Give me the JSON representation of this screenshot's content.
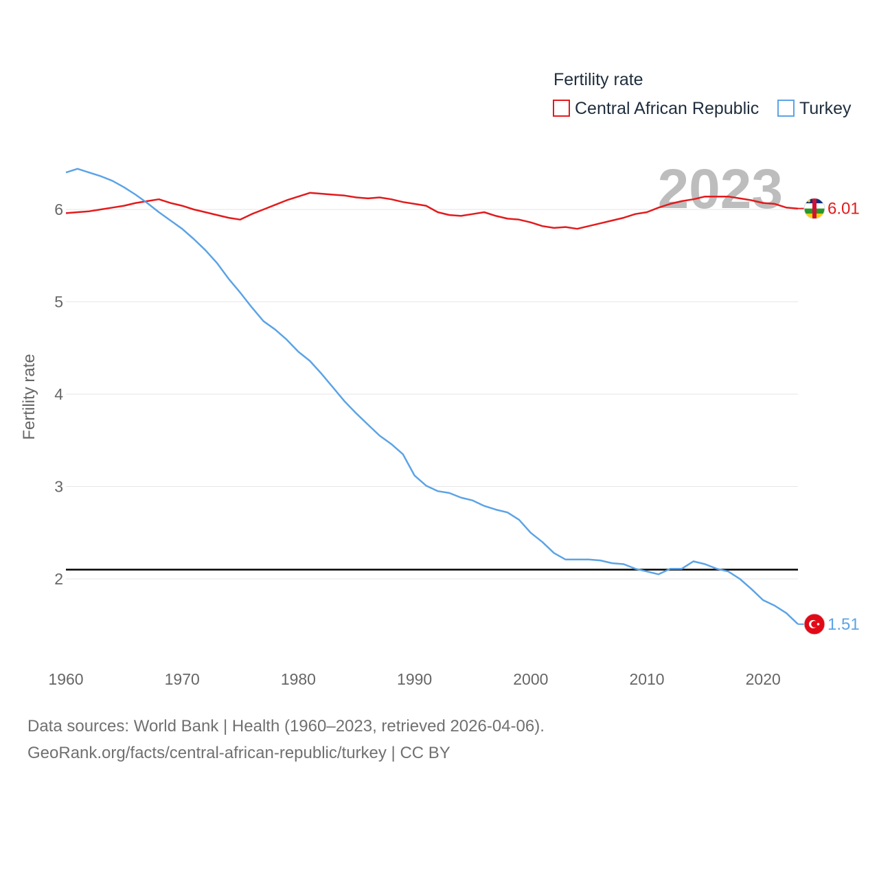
{
  "chart_data": {
    "type": "line",
    "title": "Fertility rate",
    "ylabel": "Fertility rate",
    "xlabel": "",
    "xlim": [
      1960,
      2023
    ],
    "ylim": [
      1.3,
      6.6
    ],
    "x_ticks": [
      1960,
      1970,
      1980,
      1990,
      2000,
      2010,
      2020
    ],
    "y_ticks": [
      2,
      3,
      4,
      5,
      6
    ],
    "year_label": "2023",
    "reference_line": {
      "value": 2.1,
      "color": "#000000"
    },
    "x": [
      1960,
      1961,
      1962,
      1963,
      1964,
      1965,
      1966,
      1967,
      1968,
      1969,
      1970,
      1971,
      1972,
      1973,
      1974,
      1975,
      1976,
      1977,
      1978,
      1979,
      1980,
      1981,
      1982,
      1983,
      1984,
      1985,
      1986,
      1987,
      1988,
      1989,
      1990,
      1991,
      1992,
      1993,
      1994,
      1995,
      1996,
      1997,
      1998,
      1999,
      2000,
      2001,
      2002,
      2003,
      2004,
      2005,
      2006,
      2007,
      2008,
      2009,
      2010,
      2011,
      2012,
      2013,
      2014,
      2015,
      2016,
      2017,
      2018,
      2019,
      2020,
      2021,
      2022,
      2023
    ],
    "series": [
      {
        "name": "Central African Republic",
        "color": "#e31a1c",
        "end_label": "6.01",
        "flag": "central-african-republic-flag-icon",
        "values": [
          5.96,
          5.97,
          5.98,
          6.0,
          6.02,
          6.04,
          6.07,
          6.09,
          6.11,
          6.07,
          6.04,
          6.0,
          5.97,
          5.94,
          5.91,
          5.89,
          5.95,
          6.0,
          6.05,
          6.1,
          6.14,
          6.18,
          6.17,
          6.16,
          6.15,
          6.13,
          6.12,
          6.13,
          6.11,
          6.08,
          6.06,
          6.04,
          5.97,
          5.94,
          5.93,
          5.95,
          5.97,
          5.93,
          5.9,
          5.89,
          5.86,
          5.82,
          5.8,
          5.81,
          5.79,
          5.82,
          5.85,
          5.88,
          5.91,
          5.95,
          5.97,
          6.02,
          6.06,
          6.09,
          6.11,
          6.14,
          6.14,
          6.14,
          6.12,
          6.1,
          6.07,
          6.06,
          6.02,
          6.01
        ]
      },
      {
        "name": "Turkey",
        "color": "#5ba3e6",
        "end_label": "1.51",
        "flag": "turkey-flag-icon",
        "values": [
          6.4,
          6.44,
          6.4,
          6.36,
          6.31,
          6.24,
          6.16,
          6.07,
          5.97,
          5.88,
          5.79,
          5.68,
          5.56,
          5.42,
          5.25,
          5.1,
          4.94,
          4.79,
          4.7,
          4.59,
          4.46,
          4.36,
          4.22,
          4.07,
          3.92,
          3.79,
          3.67,
          3.55,
          3.46,
          3.35,
          3.12,
          3.01,
          2.95,
          2.93,
          2.88,
          2.85,
          2.79,
          2.75,
          2.72,
          2.64,
          2.5,
          2.4,
          2.28,
          2.21,
          2.21,
          2.21,
          2.2,
          2.17,
          2.16,
          2.11,
          2.08,
          2.05,
          2.11,
          2.11,
          2.19,
          2.16,
          2.11,
          2.08,
          2.0,
          1.89,
          1.77,
          1.71,
          1.63,
          1.51
        ]
      }
    ]
  },
  "footer": {
    "line1": "Data sources: World Bank | Health (1960–2023, retrieved 2026-04-06).",
    "line2": "GeoRank.org/facts/central-african-republic/turkey | CC BY"
  }
}
